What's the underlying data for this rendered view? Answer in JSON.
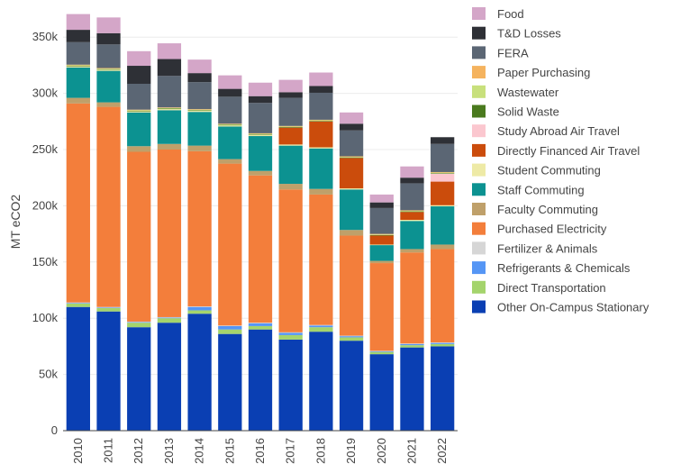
{
  "chart_data": {
    "type": "bar",
    "stacked": true,
    "ylabel": "MT eCO2",
    "ylim": [
      0,
      375000
    ],
    "yticks": [
      0,
      50000,
      100000,
      150000,
      200000,
      250000,
      300000,
      350000
    ],
    "ytick_labels": [
      "0",
      "50k",
      "100k",
      "150k",
      "200k",
      "250k",
      "300k",
      "350k"
    ],
    "grid": true,
    "legend_position": "right",
    "categories": [
      "2010",
      "2011",
      "2012",
      "2013",
      "2014",
      "2015",
      "2016",
      "2017",
      "2018",
      "2019",
      "2020",
      "2021",
      "2022"
    ],
    "series": [
      {
        "name": "Other On-Campus Stationary",
        "color": "#0a3fb3",
        "values": [
          110000,
          106000,
          92000,
          96000,
          104000,
          86000,
          90000,
          81000,
          88000,
          80000,
          68000,
          74000,
          75000
        ]
      },
      {
        "name": "Direct Transportation",
        "color": "#a4d46c",
        "values": [
          3000,
          3000,
          4000,
          4000,
          3000,
          4000,
          3000,
          4000,
          4000,
          3000,
          2000,
          2000,
          2000
        ]
      },
      {
        "name": "Refrigerants & Chemicals",
        "color": "#5596f5",
        "values": [
          500,
          500,
          500,
          500,
          3000,
          3000,
          2500,
          2000,
          1500,
          1000,
          500,
          1000,
          1000
        ]
      },
      {
        "name": "Fertilizer & Animals",
        "color": "#d6d6d6",
        "values": [
          500,
          500,
          500,
          500,
          500,
          500,
          500,
          500,
          500,
          500,
          500,
          500,
          500
        ]
      },
      {
        "name": "Purchased Electricity",
        "color": "#f37e3b",
        "values": [
          177000,
          178000,
          151000,
          149000,
          138000,
          144000,
          131000,
          127000,
          116000,
          89000,
          78000,
          81000,
          83000
        ]
      },
      {
        "name": "Faculty Commuting",
        "color": "#bfa06a",
        "values": [
          5000,
          4000,
          5000,
          5000,
          5000,
          4000,
          4000,
          5000,
          5000,
          5000,
          2000,
          3000,
          4000
        ]
      },
      {
        "name": "Staff Commuting",
        "color": "#0c9291",
        "values": [
          27000,
          28000,
          30000,
          30000,
          30000,
          29000,
          31000,
          34000,
          36000,
          36000,
          14000,
          25000,
          34000
        ]
      },
      {
        "name": "Student Commuting",
        "color": "#eeeaa6",
        "values": [
          1000,
          1000,
          1000,
          1000,
          1000,
          1000,
          1000,
          1000,
          1000,
          1000,
          500,
          1000,
          1000
        ]
      },
      {
        "name": "Directly Financed Air Travel",
        "color": "#cb4c0c",
        "values": [
          0,
          0,
          0,
          0,
          0,
          0,
          0,
          15000,
          23000,
          27000,
          8000,
          7000,
          21000
        ]
      },
      {
        "name": "Study Abroad Air Travel",
        "color": "#fbc7cf",
        "values": [
          0,
          0,
          0,
          0,
          0,
          0,
          0,
          0,
          0,
          0,
          0,
          0,
          7000
        ]
      },
      {
        "name": "Solid Waste",
        "color": "#4a7a1e",
        "values": [
          500,
          500,
          500,
          500,
          500,
          500,
          500,
          500,
          500,
          500,
          500,
          500,
          500
        ]
      },
      {
        "name": "Wastewater",
        "color": "#c8e07c",
        "values": [
          500,
          500,
          500,
          500,
          500,
          500,
          500,
          500,
          500,
          500,
          500,
          500,
          500
        ]
      },
      {
        "name": "Paper Purchasing",
        "color": "#f5b35e",
        "values": [
          500,
          500,
          500,
          500,
          500,
          500,
          500,
          500,
          500,
          500,
          500,
          500,
          500
        ]
      },
      {
        "name": "FERA",
        "color": "#5b6674",
        "values": [
          20000,
          21000,
          23000,
          28000,
          24000,
          24000,
          27000,
          25000,
          24000,
          23000,
          23000,
          24000,
          25000
        ]
      },
      {
        "name": "T&D Losses",
        "color": "#2e3036",
        "values": [
          11000,
          10000,
          16000,
          15000,
          8000,
          7000,
          6000,
          5000,
          6000,
          6000,
          5000,
          5000,
          6000
        ]
      },
      {
        "name": "Food",
        "color": "#d4a6c8",
        "values": [
          14000,
          14000,
          13000,
          14000,
          12000,
          12000,
          12000,
          11000,
          12000,
          10000,
          7000,
          10000,
          0
        ]
      }
    ],
    "legend_order": [
      "Food",
      "T&D Losses",
      "FERA",
      "Paper Purchasing",
      "Wastewater",
      "Solid Waste",
      "Study Abroad Air Travel",
      "Directly Financed Air Travel",
      "Student Commuting",
      "Staff Commuting",
      "Faculty Commuting",
      "Purchased Electricity",
      "Fertilizer & Animals",
      "Refrigerants & Chemicals",
      "Direct Transportation",
      "Other On-Campus Stationary"
    ]
  }
}
